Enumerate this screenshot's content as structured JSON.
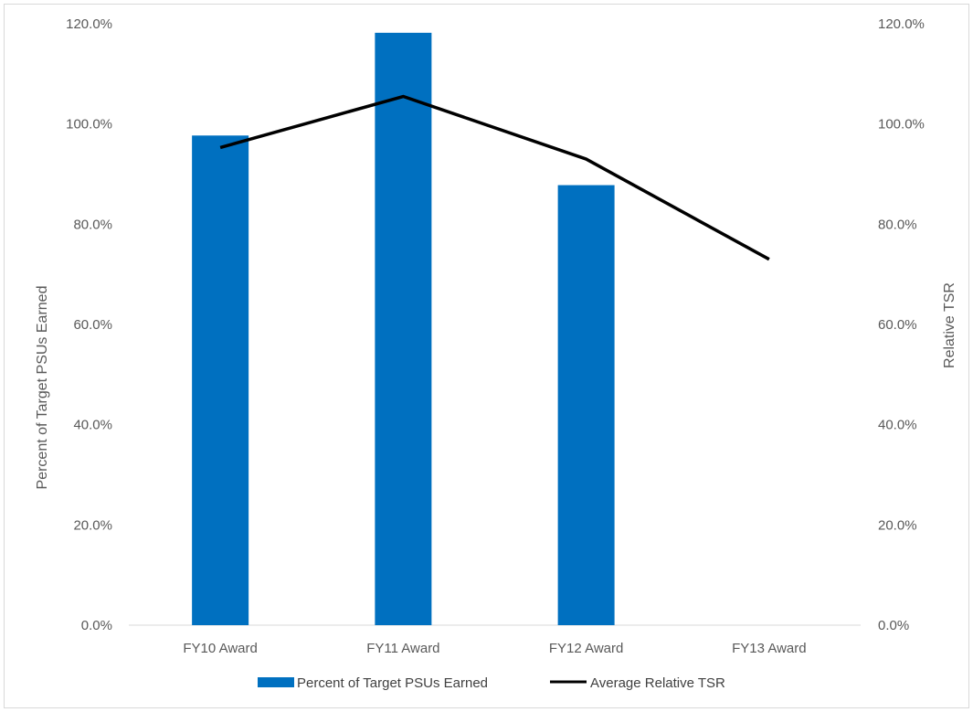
{
  "chart_data": {
    "type": "bar",
    "categories": [
      "FY10 Award",
      "FY11 Award",
      "FY12 Award",
      "FY13 Award"
    ],
    "series": [
      {
        "name": "Percent of Target PSUs Earned",
        "type": "bar",
        "axis": "left",
        "color": "#0070c0",
        "values": [
          97.7,
          118.2,
          87.8,
          null
        ]
      },
      {
        "name": "Average Relative TSR",
        "type": "line",
        "axis": "right",
        "color": "#000000",
        "values": [
          95.3,
          105.5,
          93.0,
          73.0
        ]
      }
    ],
    "ylabel": "Percent of Target PSUs Earned",
    "y2label": "Relative TSR",
    "ylim": [
      0,
      120
    ],
    "y2lim": [
      0,
      120
    ],
    "yticks": [
      "0.0%",
      "20.0%",
      "40.0%",
      "60.0%",
      "80.0%",
      "100.0%",
      "120.0%"
    ],
    "y2ticks": [
      "0.0%",
      "20.0%",
      "40.0%",
      "60.0%",
      "80.0%",
      "100.0%",
      "120.0%"
    ],
    "grid": false,
    "legend": "bottom"
  }
}
